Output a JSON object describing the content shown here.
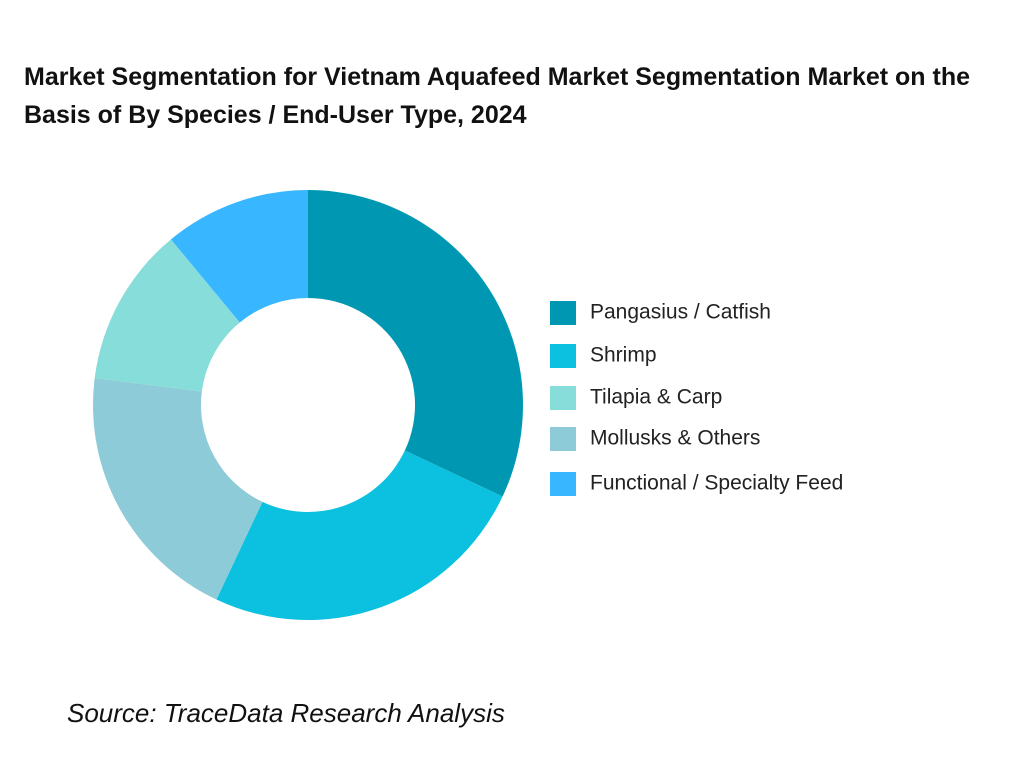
{
  "chart_data": {
    "type": "donut",
    "title": "Market Segmentation for Vietnam Aquafeed Market Segmentation Market on the Basis of By Species / End-User Type, 2024",
    "categories": [
      "Pangasius / Catfish",
      "Shrimp",
      "Tilapia & Carp",
      "Mollusks & Others",
      "Functional / Specialty Feed"
    ],
    "values": [
      32,
      25,
      12,
      20,
      11
    ],
    "colors": [
      "#0097b2",
      "#0cc0df",
      "#86ddd9",
      "#8ecbd8",
      "#38b6ff"
    ],
    "order": [
      0,
      1,
      3,
      2,
      4
    ],
    "legend": "right",
    "source": "Source: TraceData Research Analysis"
  }
}
